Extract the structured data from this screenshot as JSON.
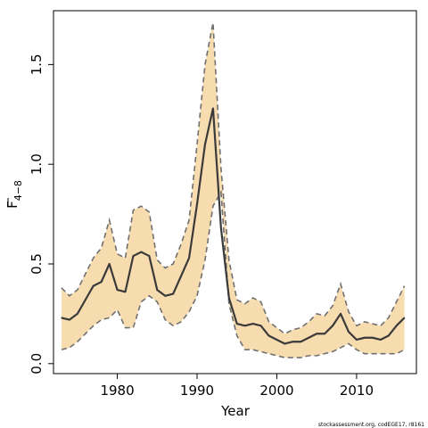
{
  "chart_data": {
    "type": "line",
    "xlabel": "Year",
    "ylabel": "F",
    "ylabel_sub": "4−8",
    "xlim": [
      1972,
      2017.5
    ],
    "ylim": [
      -0.05,
      1.77
    ],
    "xticks": [
      1980,
      1990,
      2000,
      2010
    ],
    "xtick_labels": [
      "1980",
      "1990",
      "2000",
      "2010"
    ],
    "yticks": [
      0.0,
      0.5,
      1.0,
      1.5
    ],
    "ytick_labels": [
      "0.0",
      "0.5",
      "1.0",
      "1.5"
    ],
    "colors": {
      "band": "#f7dcaf",
      "estimate": "#3a3a3a",
      "bounds": "#707070"
    },
    "credit": "stockassessment.org, codEGE17, r8161",
    "x": [
      1973,
      1974,
      1975,
      1976,
      1977,
      1978,
      1979,
      1980,
      1981,
      1982,
      1983,
      1984,
      1985,
      1986,
      1987,
      1988,
      1989,
      1990,
      1991,
      1992,
      1993,
      1994,
      1995,
      1996,
      1997,
      1998,
      1999,
      2000,
      2001,
      2002,
      2003,
      2004,
      2005,
      2006,
      2007,
      2008,
      2009,
      2010,
      2011,
      2012,
      2013,
      2014,
      2015,
      2016
    ],
    "series": [
      {
        "role": "estimate",
        "values": [
          0.23,
          0.22,
          0.25,
          0.32,
          0.39,
          0.41,
          0.5,
          0.37,
          0.36,
          0.54,
          0.56,
          0.54,
          0.37,
          0.34,
          0.35,
          0.44,
          0.53,
          0.8,
          1.1,
          1.28,
          0.68,
          0.33,
          0.2,
          0.19,
          0.2,
          0.19,
          0.14,
          0.12,
          0.1,
          0.11,
          0.11,
          0.13,
          0.15,
          0.15,
          0.19,
          0.25,
          0.16,
          0.12,
          0.13,
          0.13,
          0.12,
          0.14,
          0.19,
          0.23
        ]
      },
      {
        "role": "upper",
        "values": [
          0.38,
          0.34,
          0.37,
          0.45,
          0.53,
          0.58,
          0.72,
          0.55,
          0.53,
          0.77,
          0.79,
          0.76,
          0.52,
          0.48,
          0.5,
          0.6,
          0.72,
          1.1,
          1.5,
          1.71,
          0.98,
          0.52,
          0.32,
          0.3,
          0.33,
          0.31,
          0.21,
          0.18,
          0.15,
          0.17,
          0.18,
          0.21,
          0.25,
          0.24,
          0.29,
          0.4,
          0.26,
          0.19,
          0.21,
          0.2,
          0.19,
          0.23,
          0.31,
          0.39
        ]
      },
      {
        "role": "lower",
        "values": [
          0.07,
          0.08,
          0.11,
          0.15,
          0.19,
          0.22,
          0.23,
          0.27,
          0.18,
          0.18,
          0.31,
          0.34,
          0.31,
          0.22,
          0.19,
          0.21,
          0.26,
          0.34,
          0.52,
          0.79,
          0.86,
          0.3,
          0.14,
          0.07,
          0.07,
          0.06,
          0.05,
          0.04,
          0.03,
          0.03,
          0.03,
          0.04,
          0.04,
          0.05,
          0.06,
          0.08,
          0.1,
          0.07,
          0.05,
          0.05,
          0.05,
          0.05,
          0.05,
          0.07
        ]
      }
    ]
  }
}
